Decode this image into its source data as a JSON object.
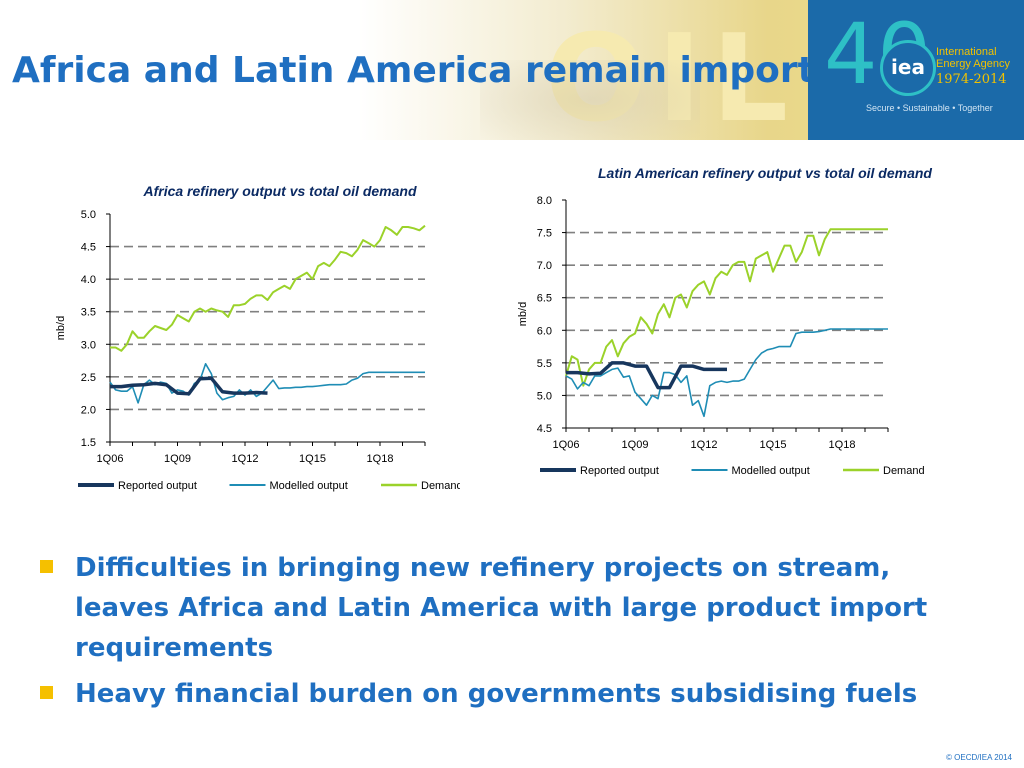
{
  "slide": {
    "title": "Africa and Latin America remain importers",
    "header_watermark": "OIL",
    "logo": {
      "number": "40",
      "acronym": "iea",
      "name": "International Energy Agency",
      "years": "1974-2014",
      "tagline": "Secure • Sustainable • Together"
    },
    "bullets": [
      "Difficulties in bringing new refinery projects on stream, leaves Africa and Latin America with large product import requirements",
      "Heavy financial burden on governments subsidising fuels"
    ],
    "footer": "© OECD/IEA 2014"
  },
  "colors": {
    "reported": "#17365d",
    "modelled": "#1f8db5",
    "demand": "#9bd22a",
    "grid": "#808080",
    "title_blue": "#1f6fc1",
    "bullet_square": "#f5c000"
  },
  "chart_data": [
    {
      "type": "line",
      "title": "Africa refinery output vs total oil demand",
      "xlabel": "",
      "ylabel": "mb/d",
      "x_ticks": [
        "1Q06",
        "1Q09",
        "1Q12",
        "1Q15",
        "1Q18"
      ],
      "y_ticks": [
        "5.0",
        "4.5",
        "4.0",
        "3.5",
        "3.0",
        "2.5",
        "2.0",
        "1.5"
      ],
      "ylim": [
        1.5,
        5.0
      ],
      "x_range_quarters": [
        0,
        56
      ],
      "grid": "horizontal dashed",
      "legend": "bottom",
      "series": [
        {
          "name": "Reported output",
          "x": [
            0,
            2,
            4,
            6,
            8,
            10,
            12,
            14,
            16,
            18,
            20,
            22,
            24,
            26,
            28
          ],
          "values": [
            2.35,
            2.35,
            2.37,
            2.38,
            2.4,
            2.38,
            2.25,
            2.24,
            2.47,
            2.48,
            2.27,
            2.25,
            2.25,
            2.26,
            2.25
          ]
        },
        {
          "name": "Modelled output",
          "x": [
            0,
            1,
            2,
            3,
            4,
            5,
            6,
            7,
            8,
            9,
            10,
            11,
            12,
            13,
            14,
            15,
            16,
            17,
            18,
            19,
            20,
            21,
            22,
            23,
            24,
            25,
            26,
            27,
            28,
            29,
            30,
            31,
            32,
            33,
            34,
            35,
            36,
            37,
            38,
            39,
            40,
            41,
            42,
            43,
            44,
            45,
            46,
            47,
            48,
            49,
            50,
            51,
            52,
            53,
            54,
            55,
            56
          ],
          "values": [
            2.42,
            2.3,
            2.28,
            2.28,
            2.35,
            2.1,
            2.38,
            2.45,
            2.38,
            2.42,
            2.4,
            2.25,
            2.3,
            2.28,
            2.22,
            2.4,
            2.45,
            2.7,
            2.55,
            2.25,
            2.15,
            2.18,
            2.2,
            2.3,
            2.22,
            2.3,
            2.2,
            2.25,
            2.35,
            2.45,
            2.32,
            2.33,
            2.33,
            2.34,
            2.34,
            2.35,
            2.35,
            2.36,
            2.37,
            2.38,
            2.38,
            2.38,
            2.39,
            2.45,
            2.48,
            2.55,
            2.57,
            2.57,
            2.57,
            2.57,
            2.57,
            2.57,
            2.57,
            2.57,
            2.57,
            2.57,
            2.57
          ]
        },
        {
          "name": "Demand",
          "x": [
            0,
            1,
            2,
            3,
            4,
            5,
            6,
            7,
            8,
            9,
            10,
            11,
            12,
            13,
            14,
            15,
            16,
            17,
            18,
            19,
            20,
            21,
            22,
            23,
            24,
            25,
            26,
            27,
            28,
            29,
            30,
            31,
            32,
            33,
            34,
            35,
            36,
            37,
            38,
            39,
            40,
            41,
            42,
            43,
            44,
            45,
            46,
            47,
            48,
            49,
            50,
            51,
            52,
            53,
            54,
            55,
            56
          ],
          "values": [
            2.95,
            2.95,
            2.9,
            3.0,
            3.2,
            3.1,
            3.1,
            3.2,
            3.28,
            3.25,
            3.22,
            3.3,
            3.45,
            3.4,
            3.35,
            3.5,
            3.55,
            3.5,
            3.55,
            3.52,
            3.5,
            3.42,
            3.6,
            3.6,
            3.62,
            3.7,
            3.75,
            3.75,
            3.68,
            3.8,
            3.85,
            3.9,
            3.85,
            4.0,
            4.05,
            4.1,
            4.0,
            4.2,
            4.25,
            4.2,
            4.3,
            4.42,
            4.4,
            4.35,
            4.45,
            4.6,
            4.55,
            4.5,
            4.6,
            4.8,
            4.75,
            4.68,
            4.8,
            4.8,
            4.78,
            4.75,
            4.82
          ]
        }
      ]
    },
    {
      "type": "line",
      "title": "Latin American refinery output vs total oil demand",
      "xlabel": "",
      "ylabel": "mb/d",
      "x_ticks": [
        "1Q06",
        "1Q09",
        "1Q12",
        "1Q15",
        "1Q18"
      ],
      "y_ticks": [
        "8.0",
        "7.5",
        "7.0",
        "6.5",
        "6.0",
        "5.5",
        "5.0",
        "4.5"
      ],
      "ylim": [
        4.5,
        8.0
      ],
      "x_range_quarters": [
        0,
        56
      ],
      "grid": "horizontal dashed",
      "legend": "bottom",
      "series": [
        {
          "name": "Reported output",
          "x": [
            0,
            2,
            4,
            6,
            8,
            10,
            12,
            14,
            16,
            18,
            20,
            22,
            24,
            26,
            28
          ],
          "values": [
            5.35,
            5.35,
            5.33,
            5.34,
            5.5,
            5.5,
            5.45,
            5.45,
            5.12,
            5.12,
            5.45,
            5.45,
            5.4,
            5.4,
            5.4
          ]
        },
        {
          "name": "Modelled output",
          "x": [
            0,
            1,
            2,
            3,
            4,
            5,
            6,
            7,
            8,
            9,
            10,
            11,
            12,
            13,
            14,
            15,
            16,
            17,
            18,
            19,
            20,
            21,
            22,
            23,
            24,
            25,
            26,
            27,
            28,
            29,
            30,
            31,
            32,
            33,
            34,
            35,
            36,
            37,
            38,
            39,
            40,
            41,
            42,
            43,
            44,
            45,
            46,
            47,
            48,
            49,
            50,
            51,
            52,
            53,
            54,
            55,
            56
          ],
          "values": [
            5.3,
            5.25,
            5.1,
            5.2,
            5.15,
            5.3,
            5.3,
            5.35,
            5.4,
            5.42,
            5.28,
            5.3,
            5.05,
            4.95,
            4.85,
            5.0,
            4.95,
            5.35,
            5.35,
            5.32,
            5.2,
            5.3,
            4.85,
            4.92,
            4.68,
            5.15,
            5.2,
            5.22,
            5.2,
            5.22,
            5.22,
            5.25,
            5.4,
            5.55,
            5.65,
            5.7,
            5.72,
            5.75,
            5.75,
            5.75,
            5.95,
            5.97,
            5.97,
            5.97,
            5.98,
            6.0,
            6.02,
            6.02,
            6.02,
            6.02,
            6.02,
            6.02,
            6.02,
            6.02,
            6.02,
            6.02,
            6.02
          ]
        },
        {
          "name": "Demand",
          "x": [
            0,
            1,
            2,
            3,
            4,
            5,
            6,
            7,
            8,
            9,
            10,
            11,
            12,
            13,
            14,
            15,
            16,
            17,
            18,
            19,
            20,
            21,
            22,
            23,
            24,
            25,
            26,
            27,
            28,
            29,
            30,
            31,
            32,
            33,
            34,
            35,
            36,
            37,
            38,
            39,
            40,
            41,
            42,
            43,
            44,
            45,
            46,
            47,
            48,
            49,
            50,
            51,
            52,
            53,
            54,
            55,
            56
          ],
          "values": [
            5.3,
            5.6,
            5.55,
            5.15,
            5.4,
            5.5,
            5.5,
            5.75,
            5.85,
            5.6,
            5.8,
            5.9,
            5.95,
            6.2,
            6.1,
            5.95,
            6.25,
            6.4,
            6.2,
            6.5,
            6.55,
            6.35,
            6.6,
            6.7,
            6.75,
            6.55,
            6.8,
            6.9,
            6.85,
            7.0,
            7.05,
            7.05,
            6.75,
            7.1,
            7.15,
            7.2,
            6.9,
            7.1,
            7.3,
            7.3,
            7.05,
            7.2,
            7.45,
            7.45,
            7.15,
            7.4,
            7.55,
            7.55,
            7.55,
            7.55,
            7.55,
            7.55,
            7.55,
            7.55,
            7.55,
            7.55,
            7.55
          ]
        }
      ]
    }
  ]
}
